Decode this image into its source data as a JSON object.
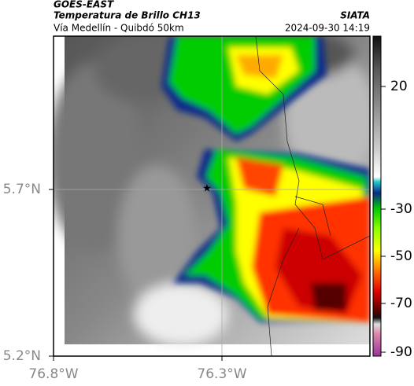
{
  "header": {
    "title": "GOES-EAST",
    "subtitle": "Temperatura de Brillo CH13",
    "source": "SIATA",
    "route": "Vía Medellín - Quibdó 50km",
    "datetime": "2024-09-30 14:19"
  },
  "map": {
    "lat_labels": [
      "5.7°N",
      "5.2°N"
    ],
    "lon_labels": [
      "76.8°W",
      "76.3°W"
    ]
  },
  "colorbar": {
    "ticks": [
      "20",
      "-30",
      "-50",
      "-70",
      "-90"
    ]
  }
}
